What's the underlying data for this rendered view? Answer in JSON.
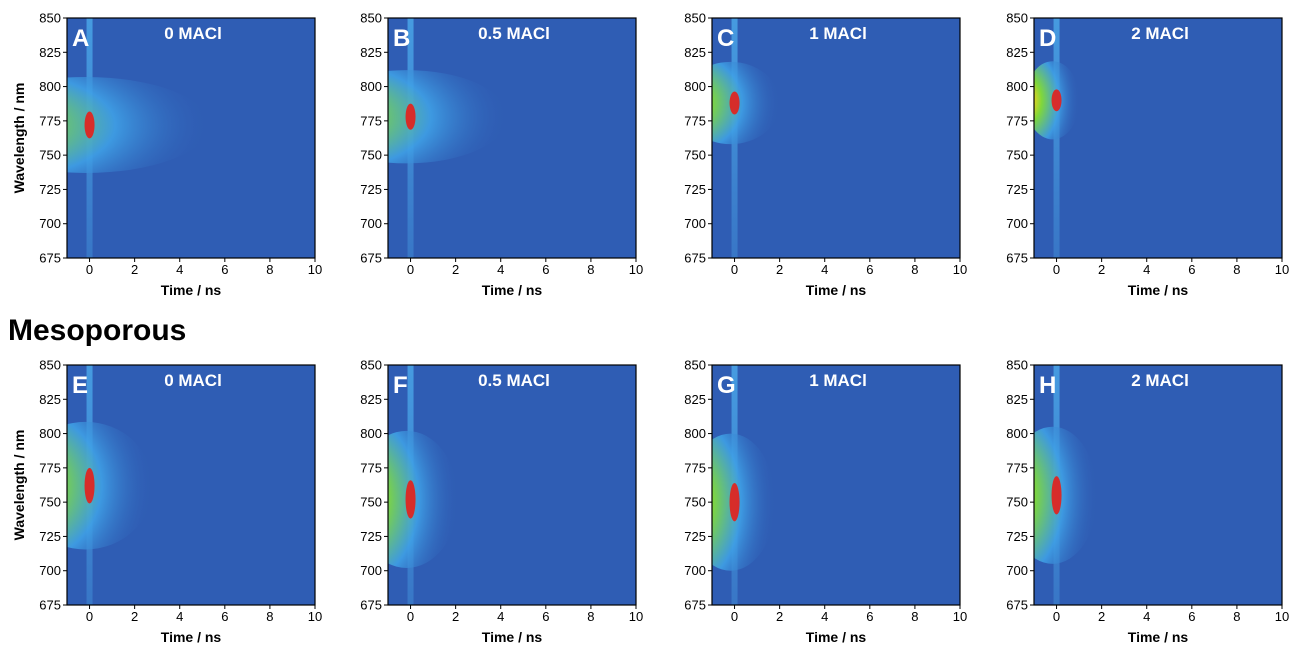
{
  "figure": {
    "section_label": "Mesoporous",
    "ylabel": "Wavelength / nm",
    "xlabel": "Time / ns",
    "x_ticks": [
      0,
      2,
      4,
      6,
      8,
      10
    ],
    "y_ticks": [
      675,
      700,
      725,
      750,
      775,
      800,
      825,
      850
    ],
    "colors": {
      "background": "#2f5db4",
      "low": "#3fa0e6",
      "mid": "#7fd73b",
      "high": "#e51f1a"
    }
  },
  "chart_data": [
    {
      "type": "heatmap",
      "panel_letter": "A",
      "title": "0 MACl",
      "xlim": [
        -1,
        10
      ],
      "ylim": [
        675,
        850
      ],
      "peak_time_ns": 0,
      "peak_wavelength_nm": 772,
      "emission_range_nm": [
        738,
        808
      ],
      "decay_extent_ns": 5.5
    },
    {
      "type": "heatmap",
      "panel_letter": "B",
      "title": "0.5 MACl",
      "xlim": [
        -1,
        10
      ],
      "ylim": [
        675,
        850
      ],
      "peak_time_ns": 0,
      "peak_wavelength_nm": 778,
      "emission_range_nm": [
        740,
        808
      ],
      "decay_extent_ns": 4.5
    },
    {
      "type": "heatmap",
      "panel_letter": "C",
      "title": "1 MACl",
      "xlim": [
        -1,
        10
      ],
      "ylim": [
        675,
        850
      ],
      "peak_time_ns": 0,
      "peak_wavelength_nm": 788,
      "emission_range_nm": [
        750,
        810
      ],
      "decay_extent_ns": 2.2
    },
    {
      "type": "heatmap",
      "panel_letter": "D",
      "title": "2 MACl",
      "xlim": [
        -1,
        10
      ],
      "ylim": [
        675,
        850
      ],
      "peak_time_ns": 0,
      "peak_wavelength_nm": 790,
      "emission_range_nm": [
        755,
        812
      ],
      "decay_extent_ns": 1.2
    },
    {
      "type": "heatmap",
      "panel_letter": "E",
      "title": "0 MACl",
      "xlim": [
        -1,
        10
      ],
      "ylim": [
        675,
        850
      ],
      "peak_time_ns": 0,
      "peak_wavelength_nm": 762,
      "emission_range_nm": [
        712,
        805
      ],
      "decay_extent_ns": 3.0
    },
    {
      "type": "heatmap",
      "panel_letter": "F",
      "title": "0.5 MACl",
      "xlim": [
        -1,
        10
      ],
      "ylim": [
        675,
        850
      ],
      "peak_time_ns": 0,
      "peak_wavelength_nm": 752,
      "emission_range_nm": [
        702,
        802
      ],
      "decay_extent_ns": 2.3
    },
    {
      "type": "heatmap",
      "panel_letter": "G",
      "title": "1 MACl",
      "xlim": [
        -1,
        10
      ],
      "ylim": [
        675,
        850
      ],
      "peak_time_ns": 0,
      "peak_wavelength_nm": 750,
      "emission_range_nm": [
        702,
        802
      ],
      "decay_extent_ns": 2.0
    },
    {
      "type": "heatmap",
      "panel_letter": "H",
      "title": "2 MACl",
      "xlim": [
        -1,
        10
      ],
      "ylim": [
        675,
        850
      ],
      "peak_time_ns": 0,
      "peak_wavelength_nm": 755,
      "emission_range_nm": [
        702,
        802
      ],
      "decay_extent_ns": 2.0
    }
  ]
}
